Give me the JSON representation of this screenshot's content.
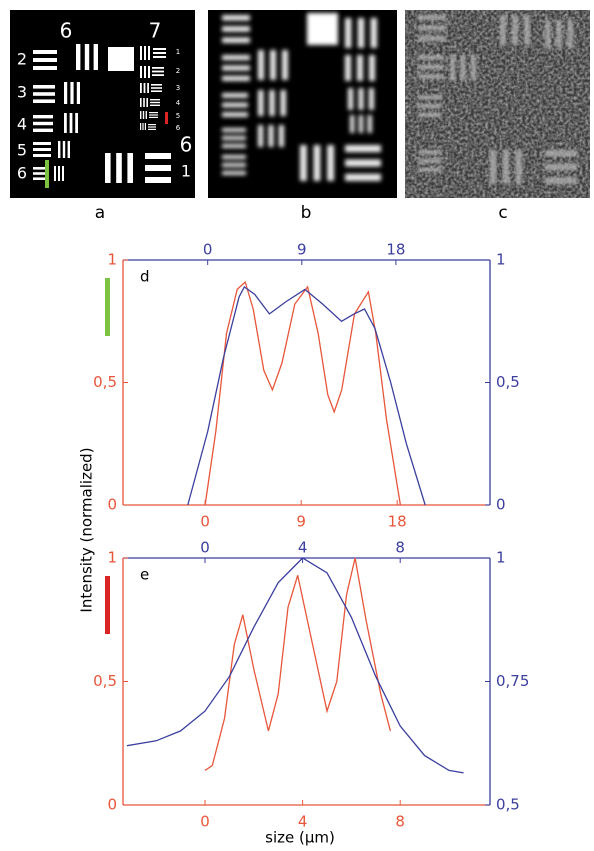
{
  "panels": [
    {
      "label": "a",
      "texts": [
        "6",
        "7",
        "2",
        "3",
        "4",
        "5",
        "6",
        "6",
        "1",
        "1",
        "2",
        "3",
        "4",
        "5",
        "6"
      ]
    },
    {
      "label": "b"
    },
    {
      "label": "c"
    }
  ],
  "ylabel": "Intensity (normalized)",
  "xlabel": "size (µm)",
  "chart_data": [
    {
      "type": "line",
      "label": "d",
      "marker_color": "#7dc242",
      "xlim": [
        -7.7,
        26.7
      ],
      "xticks": [
        0,
        9,
        18
      ],
      "x2lim": [
        -8.1,
        27.0
      ],
      "x2ticks": [
        0,
        9,
        18
      ],
      "ylim": [
        0,
        1
      ],
      "yticks": [
        0,
        {
          "value": 0.5,
          "label": "0,5"
        },
        1
      ],
      "y2lim": [
        0,
        1
      ],
      "y2ticks": [
        0,
        {
          "value": 0.5,
          "label": "0,5"
        },
        1
      ],
      "series": [
        {
          "color": "#e8563a",
          "x": [
            0,
            1,
            2,
            3,
            3.75,
            4.5,
            5.5,
            6.3,
            7.2,
            8.4,
            9.6,
            10.6,
            11.5,
            12.1,
            12.8,
            14,
            15.3,
            16,
            17,
            18.3
          ],
          "values": [
            0,
            0.3,
            0.7,
            0.88,
            0.91,
            0.8,
            0.55,
            0.47,
            0.58,
            0.82,
            0.89,
            0.7,
            0.45,
            0.38,
            0.47,
            0.78,
            0.87,
            0.7,
            0.35,
            0
          ]
        },
        {
          "color": "#3b3f9e",
          "axis": "y2",
          "x": [
            -1.9,
            0,
            1.5,
            3,
            3.5,
            4.5,
            5.9,
            7.5,
            9.3,
            11,
            12.8,
            14,
            15,
            16,
            17.5,
            19,
            20.8
          ],
          "values": [
            0,
            0.3,
            0.6,
            0.85,
            0.89,
            0.86,
            0.78,
            0.83,
            0.88,
            0.82,
            0.75,
            0.78,
            0.8,
            0.72,
            0.5,
            0.25,
            0
          ]
        }
      ]
    },
    {
      "type": "line",
      "label": "e",
      "marker_color": "#d92525",
      "xlim": [
        -3.36,
        11.68
      ],
      "xticks": [
        0,
        4,
        8
      ],
      "x2lim": [
        -3.36,
        11.68
      ],
      "x2ticks": [
        0,
        4,
        8
      ],
      "ylim": [
        0,
        1
      ],
      "yticks": [
        0,
        {
          "value": 0.5,
          "label": "0,5"
        },
        1
      ],
      "y2lim": [
        0.5,
        1
      ],
      "y2ticks": [
        {
          "value": 0.5,
          "label": "0,5"
        },
        {
          "value": 0.75,
          "label": "0,75"
        },
        1
      ],
      "series": [
        {
          "color": "#e8563a",
          "x": [
            0,
            0.3,
            0.8,
            1.2,
            1.55,
            2.0,
            2.6,
            3.0,
            3.4,
            3.8,
            4.3,
            5.0,
            5.4,
            5.8,
            6.15,
            6.6,
            7.2,
            7.6
          ],
          "values": [
            0.14,
            0.16,
            0.35,
            0.65,
            0.77,
            0.55,
            0.3,
            0.45,
            0.8,
            0.93,
            0.7,
            0.38,
            0.5,
            0.85,
            1.0,
            0.75,
            0.45,
            0.3
          ]
        },
        {
          "color": "#3b3f9e",
          "axis": "y2",
          "x": [
            -3.2,
            -2,
            -1,
            0,
            1,
            2,
            3,
            4,
            5,
            6,
            7,
            8,
            9,
            10,
            10.6
          ],
          "values": [
            0.62,
            0.63,
            0.65,
            0.69,
            0.76,
            0.86,
            0.95,
            1.0,
            0.97,
            0.88,
            0.76,
            0.66,
            0.6,
            0.57,
            0.565
          ]
        }
      ]
    }
  ]
}
